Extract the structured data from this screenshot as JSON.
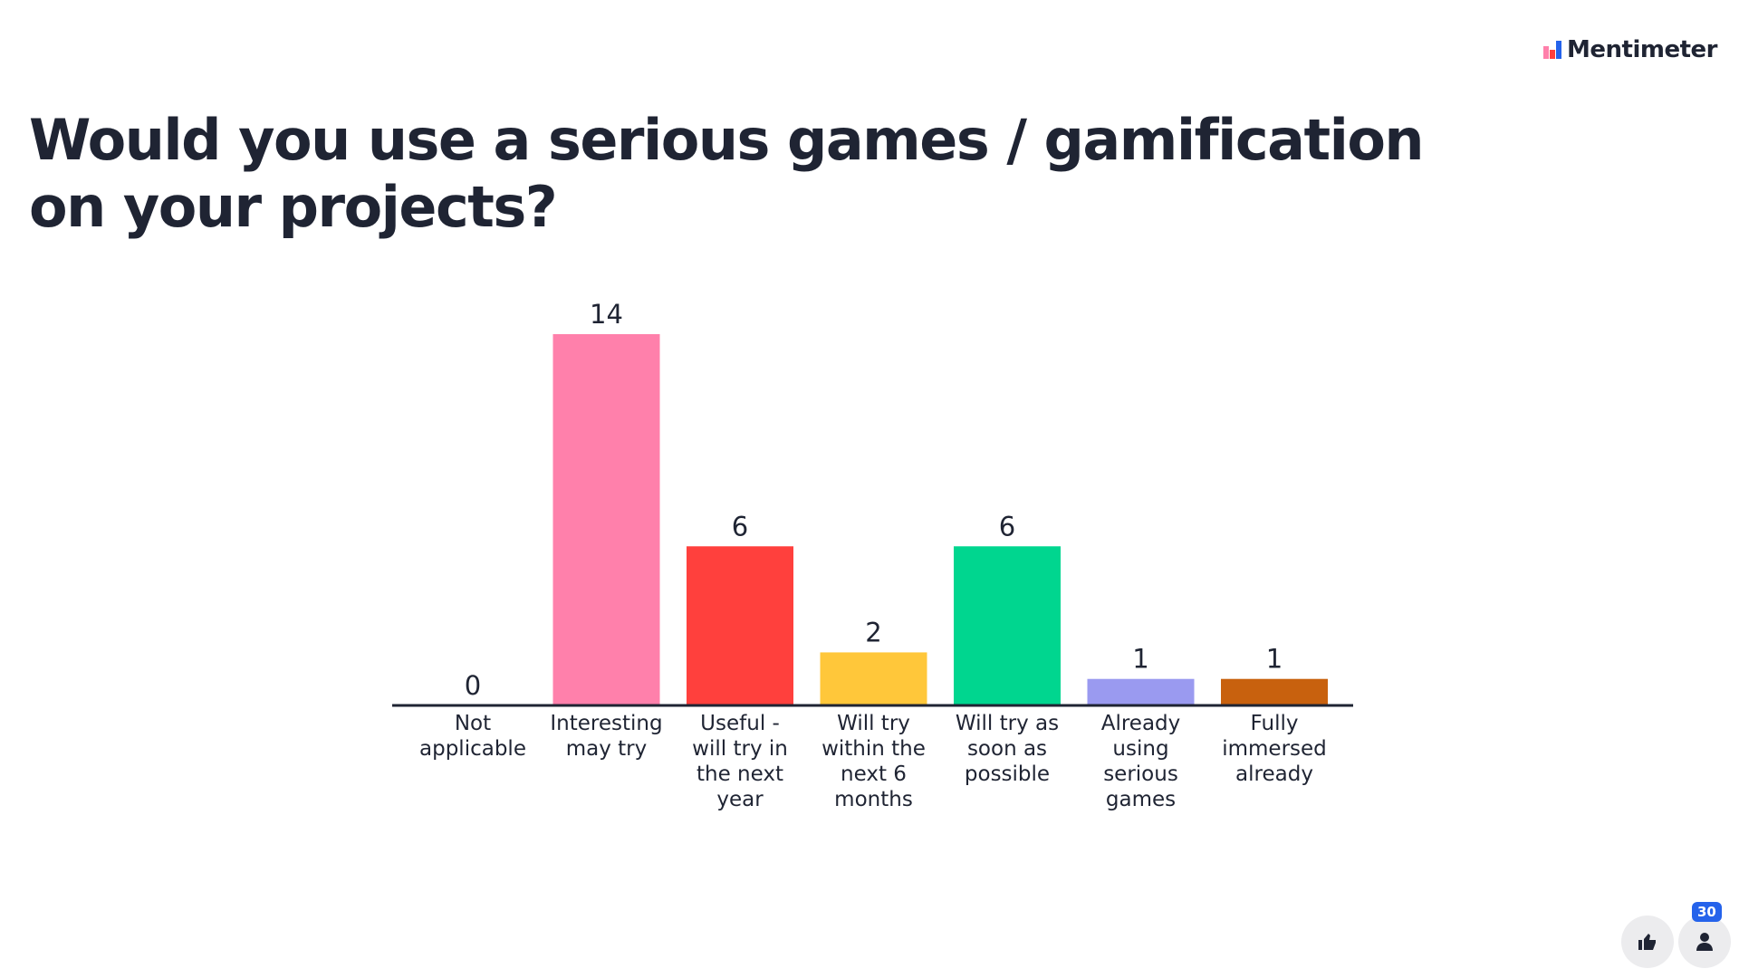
{
  "brand": "Mentimeter",
  "participants": "30",
  "chart_data": {
    "type": "bar",
    "title": "Would you use a serious games / gamification on your projects?",
    "categories": [
      "Not applicable",
      "Interesting may try",
      "Useful - will try in the next year",
      "Will try within the next 6 months",
      "Will try as soon as possible",
      "Already using serious games",
      "Fully immersed already"
    ],
    "values": [
      0,
      14,
      6,
      2,
      6,
      1,
      1
    ],
    "colors": [
      "#ff80ab",
      "#ff80ab",
      "#ff403d",
      "#ffc73a",
      "#00d68f",
      "#9a9af0",
      "#c8610e"
    ]
  }
}
